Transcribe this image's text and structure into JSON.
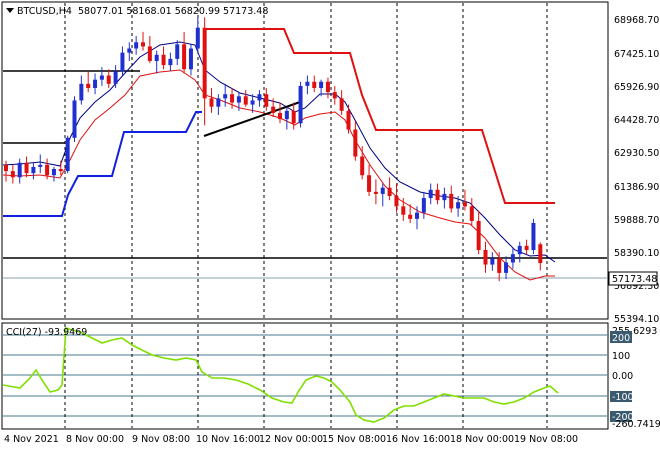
{
  "header": {
    "menu_arrow": "down-triangle-icon",
    "symbol": "BTCUSD,H4",
    "ohlc": "58077.01 58168.01 56820.99 57173.48"
  },
  "price_pane": {
    "price_axis": [
      "68968.70",
      "67425.10",
      "65926.90",
      "64428.70",
      "62930.50",
      "61386.90",
      "59888.70",
      "58390.10",
      "56892.30",
      "55394.10"
    ],
    "current_price": "57173.48"
  },
  "cci_pane": {
    "label": "CCI(27) -93.9469",
    "axis": [
      "255.6293",
      "200",
      "100",
      "0.00",
      "-100",
      "-200",
      "-260.7419"
    ]
  },
  "time_axis": [
    "4 Nov 2021",
    "8 Nov 00:00",
    "9 Nov 08:00",
    "10 Nov 16:00",
    "12 Nov 00:00",
    "15 Nov 08:00",
    "16 Nov 16:00",
    "18 Nov 00:00",
    "19 Nov 08:00"
  ],
  "colors": {
    "bull": "#2030d0",
    "bear": "#e01010",
    "cci_line": "#7fe000",
    "ma_blue": "#000080",
    "ma_red": "#e01010",
    "channel_blue": "#1020e0",
    "channel_red": "#e01010",
    "level_line": "#000000"
  },
  "chart_data": {
    "type": "candlestick",
    "symbol": "BTCUSD",
    "timeframe": "H4",
    "price_range": [
      55394.1,
      69800
    ],
    "cci_range": [
      -260.7419,
      255.6293
    ],
    "candles": [
      [
        61900,
        62100,
        61100,
        61600
      ],
      [
        61600,
        61900,
        61000,
        61300
      ],
      [
        61300,
        62200,
        61000,
        62000
      ],
      [
        62000,
        62300,
        61300,
        61500
      ],
      [
        61500,
        62000,
        61200,
        61800
      ],
      [
        61800,
        62400,
        61500,
        61900
      ],
      [
        61900,
        62200,
        61200,
        61400
      ],
      [
        61400,
        61800,
        61100,
        61700
      ],
      [
        61700,
        62100,
        61400,
        61600
      ],
      [
        61600,
        63300,
        61500,
        63200
      ],
      [
        63200,
        65200,
        63000,
        65000
      ],
      [
        65000,
        66200,
        64800,
        65800
      ],
      [
        65800,
        66400,
        65400,
        65600
      ],
      [
        65600,
        66300,
        65300,
        66000
      ],
      [
        66000,
        66600,
        65700,
        66200
      ],
      [
        66200,
        66500,
        65600,
        65800
      ],
      [
        65800,
        66700,
        65600,
        66400
      ],
      [
        66400,
        67600,
        66200,
        67300
      ],
      [
        67300,
        67800,
        66900,
        67500
      ],
      [
        67500,
        68100,
        67200,
        67800
      ],
      [
        67800,
        68300,
        67400,
        67600
      ],
      [
        67600,
        68100,
        66800,
        66900
      ],
      [
        66900,
        67400,
        66300,
        67200
      ],
      [
        67200,
        67600,
        66500,
        66700
      ],
      [
        66700,
        67300,
        66400,
        67000
      ],
      [
        67000,
        67900,
        66700,
        67700
      ],
      [
        67700,
        68300,
        66300,
        66500
      ],
      [
        66500,
        67700,
        66200,
        67500
      ],
      [
        67500,
        69000,
        67300,
        68500
      ],
      [
        68500,
        69000,
        63800,
        65100
      ],
      [
        65100,
        65600,
        64400,
        64700
      ],
      [
        64700,
        65300,
        64300,
        65100
      ],
      [
        65100,
        65800,
        64700,
        65300
      ],
      [
        65300,
        65600,
        64600,
        64900
      ],
      [
        64900,
        65400,
        64500,
        65200
      ],
      [
        65200,
        65500,
        64700,
        64800
      ],
      [
        64800,
        65300,
        64400,
        65000
      ],
      [
        65000,
        65500,
        64700,
        65300
      ],
      [
        65300,
        65600,
        64500,
        64700
      ],
      [
        64700,
        65100,
        64200,
        64400
      ],
      [
        64400,
        64900,
        63900,
        64100
      ],
      [
        64100,
        64700,
        63600,
        64500
      ],
      [
        64500,
        64900,
        63600,
        63900
      ],
      [
        63900,
        65900,
        63700,
        65700
      ],
      [
        65700,
        66200,
        65300,
        65900
      ],
      [
        65900,
        66200,
        65400,
        65600
      ],
      [
        65600,
        66000,
        65200,
        65900
      ],
      [
        65900,
        66100,
        65100,
        65400
      ],
      [
        65400,
        65700,
        64800,
        65100
      ],
      [
        65100,
        65500,
        64300,
        64500
      ],
      [
        64500,
        64800,
        63400,
        63600
      ],
      [
        63600,
        64000,
        62100,
        62300
      ],
      [
        62300,
        62800,
        61200,
        61400
      ],
      [
        61400,
        61900,
        60400,
        60600
      ],
      [
        60600,
        61200,
        60000,
        60500
      ],
      [
        60500,
        61000,
        59900,
        60800
      ],
      [
        60800,
        61300,
        60200,
        60400
      ],
      [
        60400,
        61000,
        59600,
        59900
      ],
      [
        59900,
        60300,
        59200,
        59500
      ],
      [
        59500,
        60000,
        59100,
        59300
      ],
      [
        59300,
        59900,
        58800,
        59600
      ],
      [
        59600,
        60600,
        59300,
        60300
      ],
      [
        60300,
        61000,
        60000,
        60700
      ],
      [
        60700,
        61000,
        60000,
        60200
      ],
      [
        60200,
        60800,
        59800,
        60500
      ],
      [
        60500,
        60900,
        59600,
        59800
      ],
      [
        59800,
        60400,
        59400,
        60100
      ],
      [
        60100,
        60700,
        59700,
        59900
      ],
      [
        59900,
        60300,
        59000,
        59200
      ],
      [
        59200,
        59700,
        57600,
        57800
      ],
      [
        57800,
        58200,
        56700,
        57100
      ],
      [
        57100,
        57700,
        56800,
        57400
      ],
      [
        57400,
        57700,
        56300,
        56700
      ],
      [
        56700,
        57500,
        56400,
        57200
      ],
      [
        57200,
        57900,
        56900,
        57600
      ],
      [
        57600,
        58200,
        57200,
        58000
      ],
      [
        58000,
        58300,
        57600,
        57800
      ],
      [
        57800,
        59300,
        57600,
        59100
      ],
      [
        58077.01,
        58168.01,
        56820.99,
        57173.48
      ]
    ]
  }
}
